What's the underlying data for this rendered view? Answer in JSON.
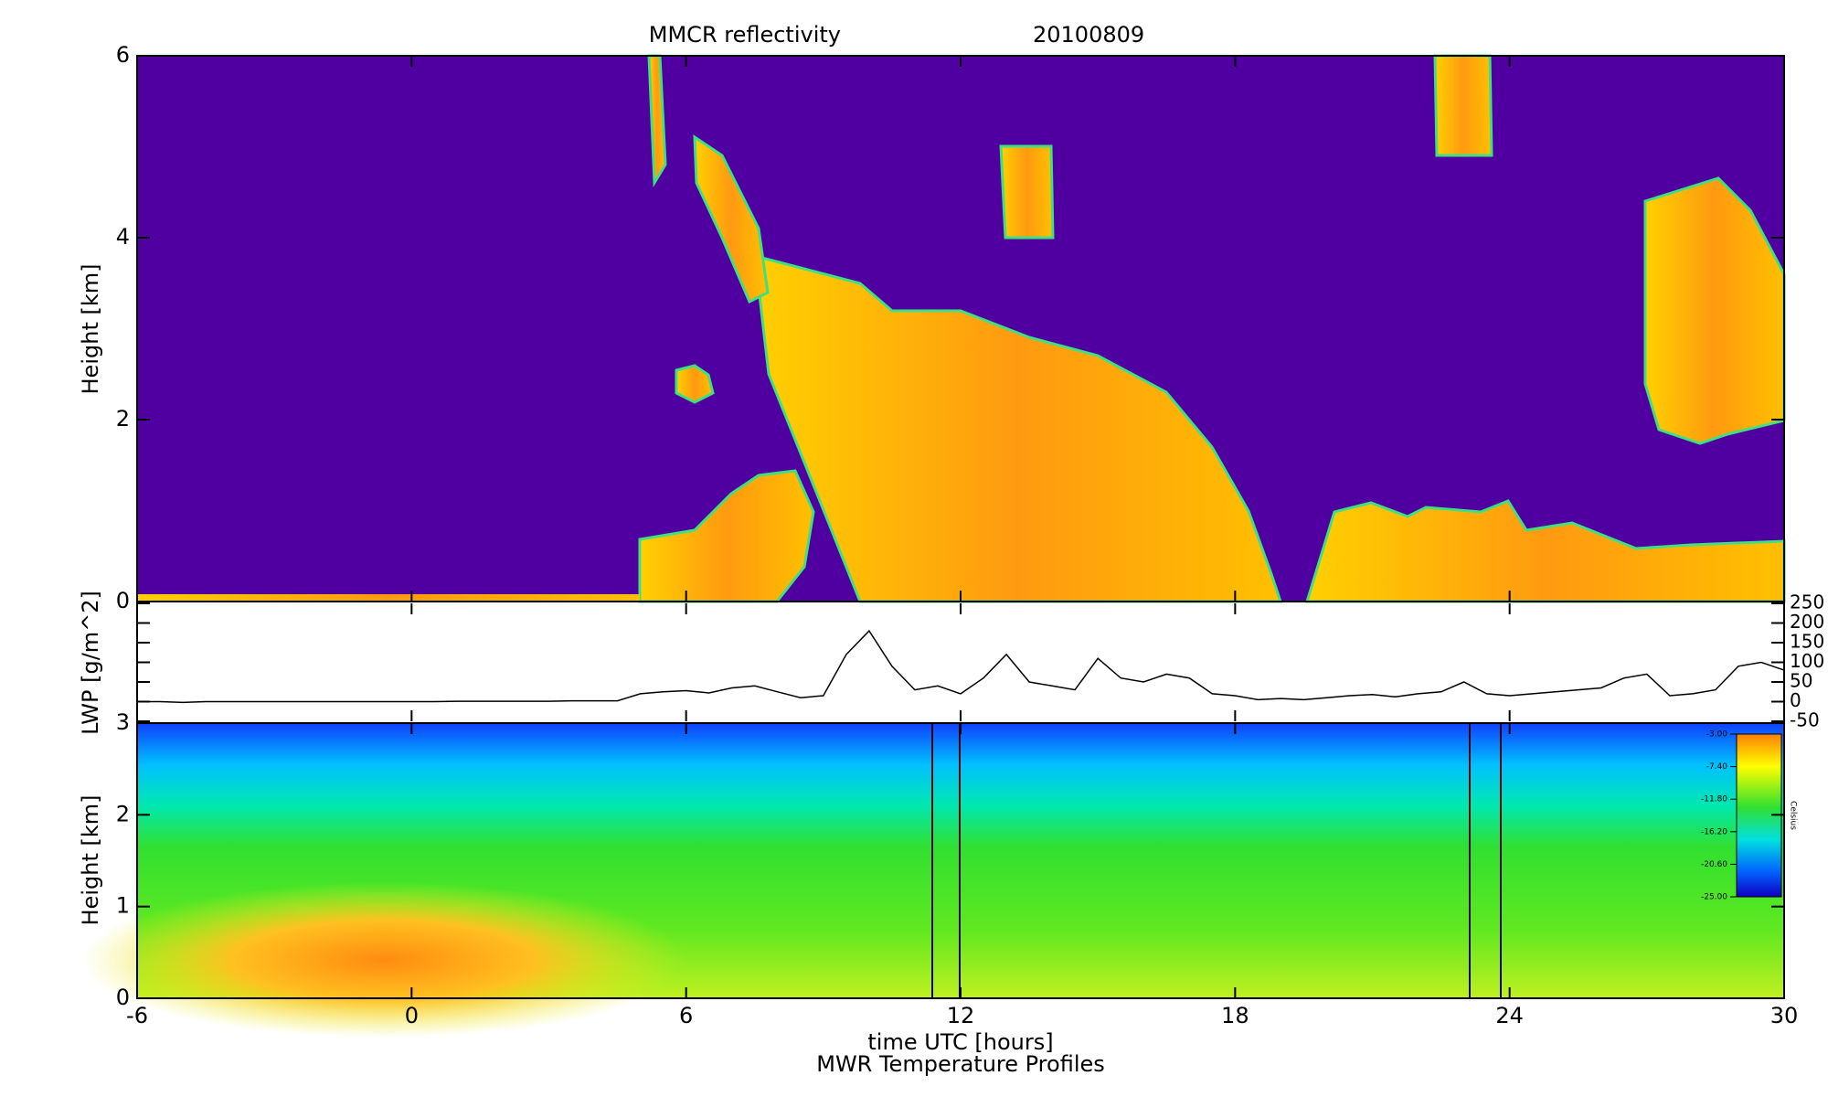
{
  "chart_data": [
    {
      "type": "heatmap",
      "title": "MMCR reflectivity",
      "date": "20100809",
      "ylabel": "Height [km]",
      "xlim": [
        -6,
        30
      ],
      "xticks": [
        -6,
        0,
        6,
        12,
        18,
        24,
        30
      ],
      "ylim": [
        0,
        6
      ],
      "yticks": [
        0,
        2,
        4,
        6
      ]
    },
    {
      "type": "line",
      "ylabel": "LWP [g/m^2]",
      "color": "#000000",
      "x": [
        -6,
        -5.5,
        -5,
        -4.5,
        -4,
        -3.5,
        -3,
        -2.5,
        -2,
        -1.5,
        -1,
        -0.5,
        0,
        0.5,
        1,
        1.5,
        2,
        2.5,
        3,
        3.5,
        4,
        4.5,
        5,
        5.5,
        6,
        6.5,
        7,
        7.5,
        8,
        8.5,
        9,
        9.5,
        10,
        10.5,
        11,
        11.5,
        12,
        12.5,
        13,
        13.5,
        14,
        14.5,
        15,
        15.5,
        16,
        16.5,
        17,
        17.5,
        18,
        18.5,
        19,
        19.5,
        20,
        20.5,
        21,
        21.5,
        22,
        22.5,
        23,
        23.5,
        24,
        24.5,
        25,
        25.5,
        26,
        26.5,
        27,
        27.5,
        28,
        28.5,
        29,
        29.5,
        30
      ],
      "values": [
        0,
        0,
        -2,
        0,
        0,
        0,
        0,
        0,
        0,
        0,
        0,
        0,
        0,
        0,
        1,
        1,
        1,
        1,
        1,
        2,
        2,
        2,
        20,
        25,
        28,
        22,
        35,
        40,
        25,
        10,
        15,
        120,
        180,
        90,
        30,
        40,
        20,
        60,
        120,
        50,
        40,
        30,
        110,
        60,
        50,
        70,
        60,
        20,
        15,
        5,
        8,
        5,
        10,
        15,
        18,
        12,
        20,
        25,
        50,
        20,
        15,
        20,
        25,
        30,
        35,
        60,
        70,
        15,
        20,
        30,
        90,
        100,
        80
      ],
      "xlim": [
        -6,
        30
      ],
      "xticks": [
        -6,
        0,
        6,
        12,
        18,
        24,
        30
      ],
      "ylim": [
        -50,
        250
      ],
      "yticks": [
        -50,
        0,
        50,
        100,
        150,
        200,
        250
      ]
    },
    {
      "type": "contour",
      "title": "MWR Temperature Profiles",
      "ylabel": "Height [km]",
      "xlabel": "time UTC [hours]",
      "xlim": [
        -6,
        30
      ],
      "xticks": [
        -6,
        0,
        6,
        12,
        18,
        24,
        30
      ],
      "ylim": [
        0,
        3
      ],
      "yticks": [
        0,
        1,
        2,
        3
      ],
      "colorbar": {
        "label": "Celsius",
        "lim": [
          -25,
          -3
        ],
        "ticks": [
          {
            "value": -3,
            "label": "-3.00"
          },
          {
            "value": -7.4,
            "label": "-7.40"
          },
          {
            "value": -11.8,
            "label": "-11.80"
          },
          {
            "value": -16.2,
            "label": "-16.20"
          },
          {
            "value": -20.6,
            "label": "-20.60"
          },
          {
            "value": -25,
            "label": "-25.00"
          }
        ]
      }
    }
  ]
}
